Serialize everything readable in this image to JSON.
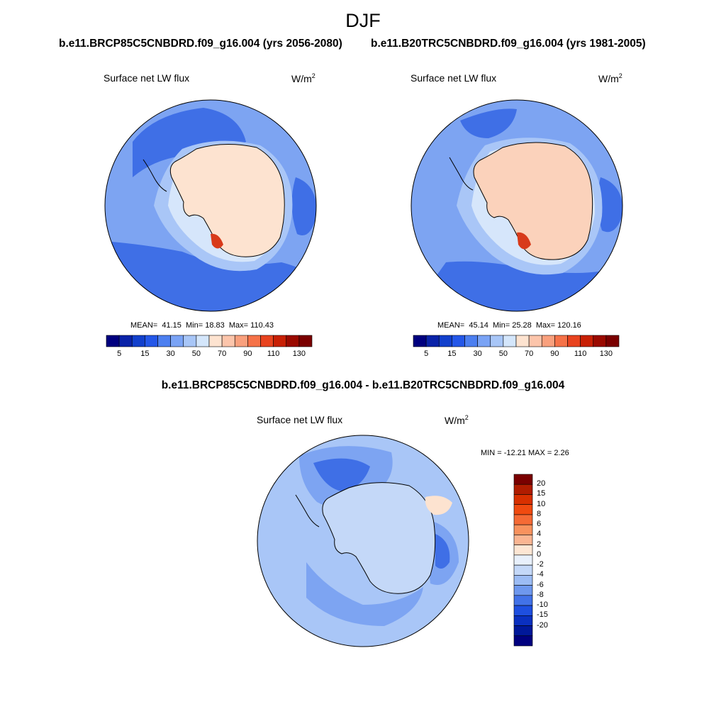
{
  "page_title": "DJF",
  "panels": {
    "left": {
      "title": "b.e11.BRCP85C5CNBDRD.f09_g16.004 (yrs 2056-2080)",
      "variable": "Surface net LW flux",
      "units": "W/m",
      "units_exp": "2",
      "stats": {
        "mean_label": "MEAN=",
        "mean": "41.15",
        "min_label": "Min=",
        "min": "18.83",
        "max_label": "Max=",
        "max": "110.43"
      }
    },
    "right": {
      "title": "b.e11.B20TRC5CNBDRD.f09_g16.004 (yrs 1981-2005)",
      "variable": "Surface net LW flux",
      "units": "W/m",
      "units_exp": "2",
      "stats": {
        "mean_label": "MEAN=",
        "mean": "45.14",
        "min_label": "Min=",
        "min": "25.28",
        "max_label": "Max=",
        "max": "120.16"
      }
    },
    "diff": {
      "title": "b.e11.BRCP85C5CNBDRD.f09_g16.004 - b.e11.B20TRC5CNBDRD.f09_g16.004",
      "variable": "Surface net LW flux",
      "units": "W/m",
      "units_exp": "2",
      "minmax": "MIN = -12.21 MAX =   2.26"
    }
  },
  "colorbars": {
    "abs": {
      "colors": [
        "#00007f",
        "#0a23a8",
        "#1240cc",
        "#2457e8",
        "#4c7ff0",
        "#7aa3f5",
        "#a8c6f7",
        "#d4e6fb",
        "#fde3d0",
        "#fcc5ab",
        "#f9a07d",
        "#f57248",
        "#e8431f",
        "#c82005",
        "#9a0a00",
        "#7a0000"
      ],
      "tick_labels": [
        "5",
        "15",
        "30",
        "50",
        "70",
        "90",
        "110",
        "130"
      ]
    },
    "diff": {
      "colors": [
        "#7a0000",
        "#b01c00",
        "#d83000",
        "#f04a10",
        "#f56a35",
        "#f8925e",
        "#fab592",
        "#fde6d4",
        "#e8f0fc",
        "#c4d8f8",
        "#9cbcf4",
        "#6e98ee",
        "#4272e8",
        "#1e4fe0",
        "#0a30c0",
        "#00189a",
        "#00007f"
      ],
      "tick_labels": [
        "20",
        "15",
        "10",
        "8",
        "6",
        "4",
        "2",
        "0",
        "-2",
        "-4",
        "-6",
        "-8",
        "-10",
        "-15",
        "-20"
      ]
    }
  },
  "map_colors": {
    "ocean_deep": "#3f6fe6",
    "ocean_mid": "#7da4f2",
    "ocean_light": "#a9c6f7",
    "ice_shelf": "#d6e6fb",
    "land_left": "#fde3d0",
    "land_right": "#fbd2bb",
    "hot": "#d83a1a",
    "diff_bg": "#a9c6f7",
    "diff_mid": "#7da4f2",
    "diff_dark": "#3f6fe6",
    "diff_land": "#c4d8f8",
    "diff_warm": "#fde3d0"
  }
}
